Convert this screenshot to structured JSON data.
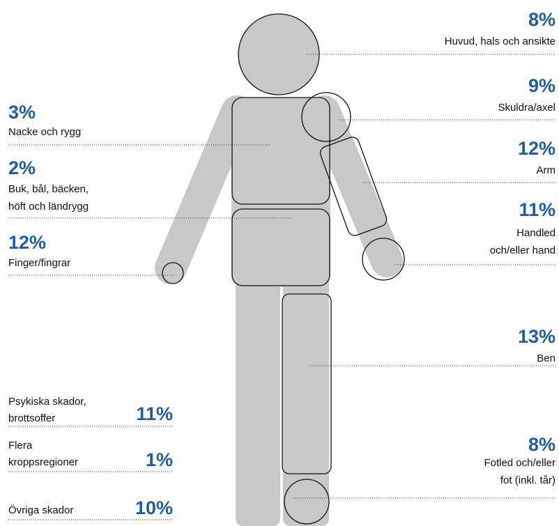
{
  "regions": [
    {
      "percent": "8%",
      "text": [
        "Huvud, hals och ansikte"
      ]
    },
    {
      "percent": "9%",
      "text": [
        "Skuldra/axel"
      ]
    },
    {
      "percent": "12%",
      "text": [
        "Arm"
      ]
    },
    {
      "percent": "11%",
      "text": [
        "Handled",
        "och/eller hand"
      ]
    },
    {
      "percent": "13%",
      "text": [
        "Ben"
      ]
    },
    {
      "percent": "8%",
      "text": [
        "Fotled och/eller",
        "fot (inkl. tår)"
      ]
    },
    {
      "percent": "3%",
      "text": [
        "Nacke och rygg"
      ]
    },
    {
      "percent": "2%",
      "text": [
        "Buk, bål, bäcken,",
        "höft och ländrygg"
      ]
    },
    {
      "percent": "12%",
      "text": [
        "Finger/fingrar"
      ]
    },
    {
      "percent": "11%",
      "text": [
        "Psykiska skador,",
        "brottsoffer"
      ]
    },
    {
      "percent": "1%",
      "text": [
        "Flera",
        "kroppsregioner"
      ]
    },
    {
      "percent": "10%",
      "text": [
        "Övriga skador"
      ]
    }
  ]
}
